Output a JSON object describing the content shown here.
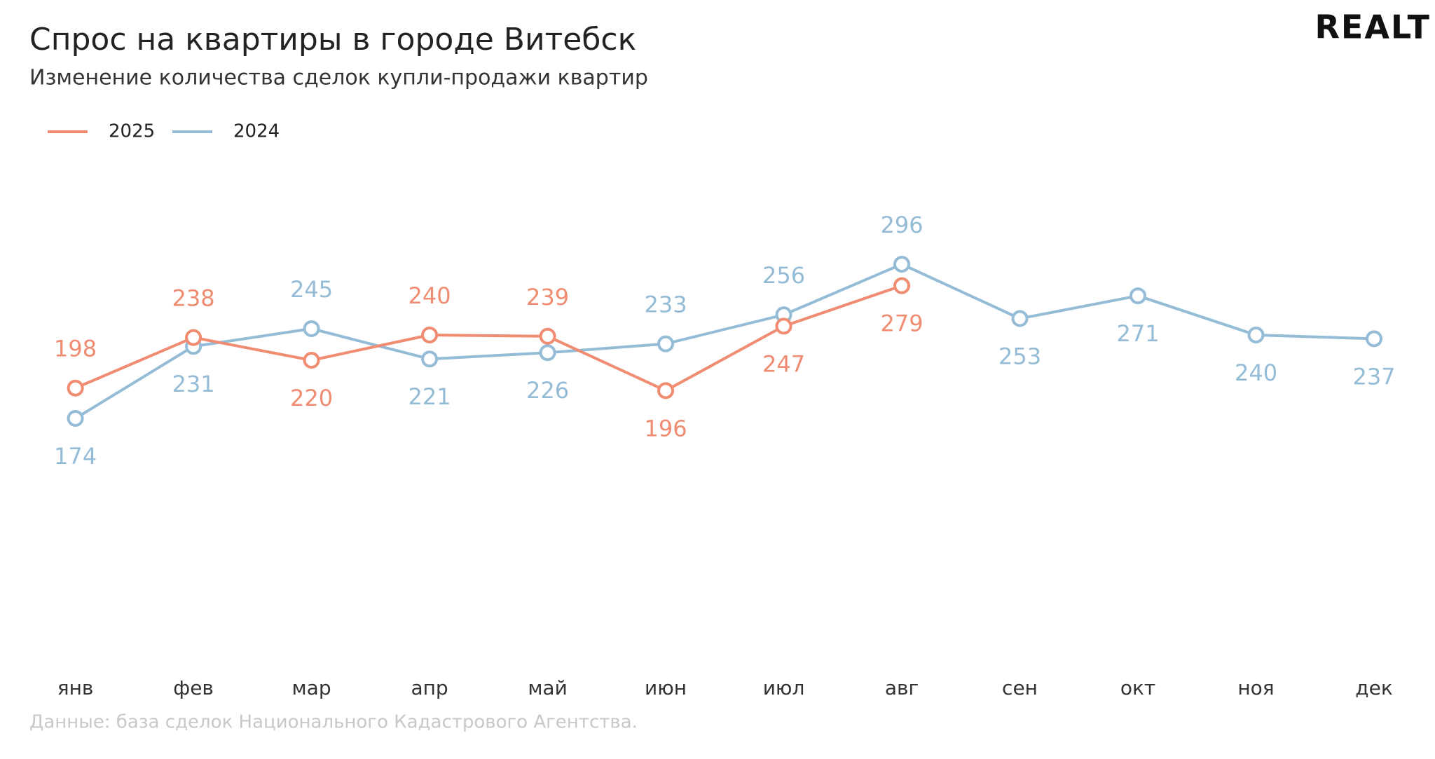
{
  "chart_data": {
    "type": "line",
    "title": "Спрос на квартиры в городе Витебск",
    "subtitle": "Изменение количества сделок купли-продажи квартир",
    "logo": "REALT",
    "source": "Данные: база сделок Национального Кадастрового Агентства.",
    "categories": [
      "янв",
      "фев",
      "мар",
      "апр",
      "май",
      "июн",
      "июл",
      "авг",
      "сен",
      "окт",
      "ноя",
      "дек"
    ],
    "series": [
      {
        "name": "2025",
        "color": "#ef8c72",
        "values": [
          198,
          238,
          220,
          240,
          239,
          196,
          247,
          279,
          null,
          null,
          null,
          null
        ]
      },
      {
        "name": "2024",
        "color": "#94bcd6",
        "values": [
          174,
          231,
          245,
          221,
          226,
          233,
          256,
          296,
          253,
          271,
          240,
          237
        ]
      }
    ]
  }
}
